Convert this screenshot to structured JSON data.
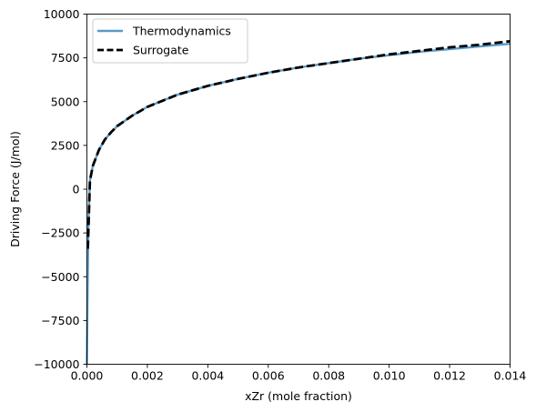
{
  "chart_data": {
    "type": "line",
    "xlabel": "xZr (mole fraction)",
    "ylabel": "Driving Force (J/mol)",
    "xlim": [
      0,
      0.014
    ],
    "ylim": [
      -10000,
      10000
    ],
    "xticks": [
      0.0,
      0.002,
      0.004,
      0.006,
      0.008,
      0.01,
      0.012,
      0.014
    ],
    "xtick_labels": [
      "0.000",
      "0.002",
      "0.004",
      "0.006",
      "0.008",
      "0.010",
      "0.012",
      "0.014"
    ],
    "yticks": [
      -10000,
      -7500,
      -5000,
      -2500,
      0,
      2500,
      5000,
      7500,
      10000
    ],
    "ytick_labels": [
      "−10000",
      "−7500",
      "−5000",
      "−2500",
      "0",
      "2500",
      "5000",
      "7500",
      "10000"
    ],
    "grid": false,
    "legend_position": "upper-left",
    "series": [
      {
        "name": "Thermodynamics",
        "color": "#5b9bc8",
        "style": "solid",
        "x": [
          0.0,
          2e-05,
          5e-05,
          0.0001,
          0.0002,
          0.0004,
          0.0006,
          0.0008,
          0.001,
          0.0015,
          0.002,
          0.003,
          0.004,
          0.005,
          0.006,
          0.007,
          0.008,
          0.009,
          0.01,
          0.011,
          0.012,
          0.013,
          0.014
        ],
        "y": [
          -10000,
          -6500,
          -2000,
          500,
          1350,
          2250,
          2850,
          3250,
          3600,
          4200,
          4700,
          5400,
          5900,
          6300,
          6650,
          6950,
          7200,
          7450,
          7650,
          7850,
          8000,
          8150,
          8300
        ]
      },
      {
        "name": "Surrogate",
        "color": "#000000",
        "style": "dashed",
        "x": [
          3e-05,
          6e-05,
          0.0001,
          0.0002,
          0.0004,
          0.0006,
          0.0008,
          0.001,
          0.0015,
          0.002,
          0.003,
          0.004,
          0.005,
          0.006,
          0.007,
          0.008,
          0.009,
          0.01,
          0.011,
          0.012,
          0.013,
          0.014
        ],
        "y": [
          -3400,
          -1800,
          500,
          1350,
          2250,
          2850,
          3250,
          3600,
          4200,
          4700,
          5400,
          5900,
          6300,
          6650,
          6950,
          7200,
          7450,
          7700,
          7900,
          8100,
          8250,
          8450
        ]
      }
    ]
  }
}
